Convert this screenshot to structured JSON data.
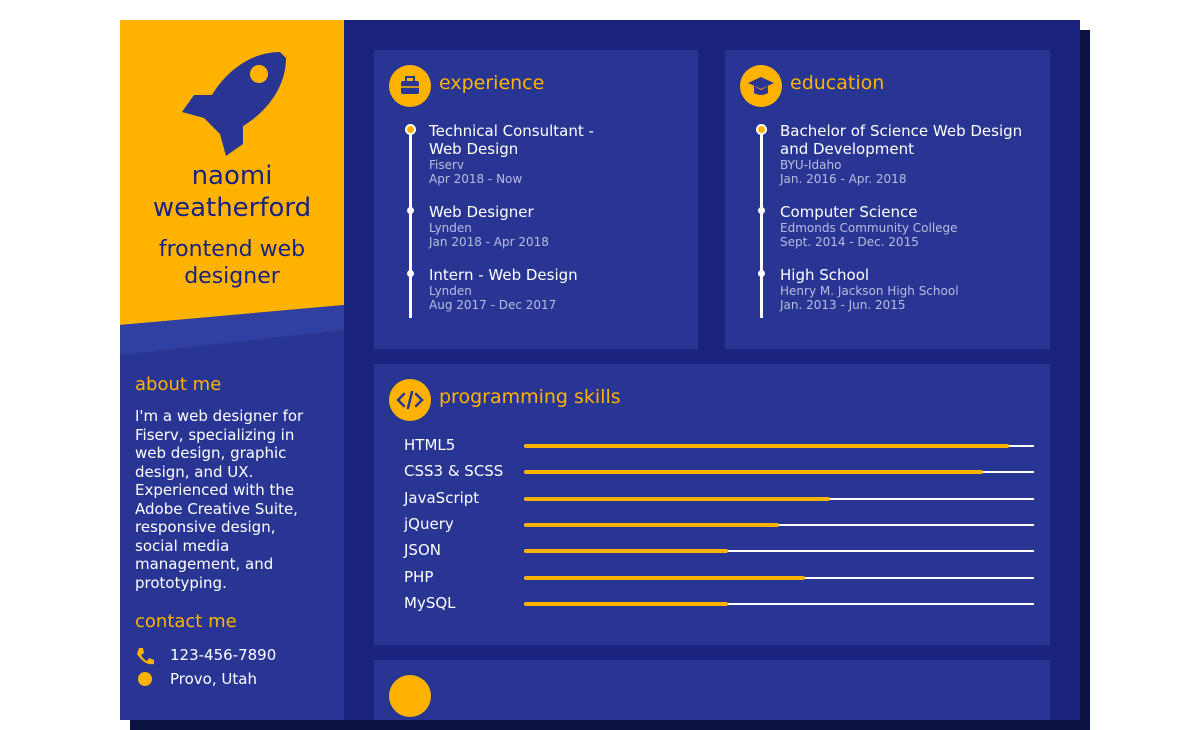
{
  "profile": {
    "first_name": "naomi",
    "last_name": "weatherford",
    "role": "frontend web designer"
  },
  "about": {
    "heading": "about me",
    "text": "I'm a web designer for Fiserv, specializing in web design, graphic design, and UX. Experienced with the Adobe Creative Suite, responsive design, social media management, and prototyping."
  },
  "contact": {
    "heading": "contact me",
    "items": [
      "123-456-7890",
      "Provo, Utah"
    ]
  },
  "experience": {
    "heading": "experience",
    "items": [
      {
        "title": "Technical Consultant - Web Design",
        "org": "Fiserv",
        "dates": "Apr 2018 - Now"
      },
      {
        "title": "Web Designer",
        "org": "Lynden",
        "dates": "Jan 2018 - Apr 2018"
      },
      {
        "title": "Intern - Web Design",
        "org": "Lynden",
        "dates": "Aug 2017 - Dec 2017"
      }
    ]
  },
  "education": {
    "heading": "education",
    "items": [
      {
        "title": "Bachelor of Science Web Design and Development",
        "org": "BYU-Idaho",
        "dates": "Jan. 2016 - Apr. 2018"
      },
      {
        "title": "Computer Science",
        "org": "Edmonds Community College",
        "dates": "Sept. 2014 - Dec. 2015"
      },
      {
        "title": "High School",
        "org": "Henry M. Jackson High School",
        "dates": "Jan. 2013 - Jun. 2015"
      }
    ]
  },
  "skills": {
    "heading": "programming skills",
    "max": 100,
    "items": [
      {
        "name": "HTML5",
        "level": 95
      },
      {
        "name": "CSS3 & SCSS",
        "level": 90
      },
      {
        "name": "JavaScript",
        "level": 60
      },
      {
        "name": "jQuery",
        "level": 50
      },
      {
        "name": "JSON",
        "level": 40
      },
      {
        "name": "PHP",
        "level": 55
      },
      {
        "name": "MySQL",
        "level": 40
      }
    ]
  }
}
